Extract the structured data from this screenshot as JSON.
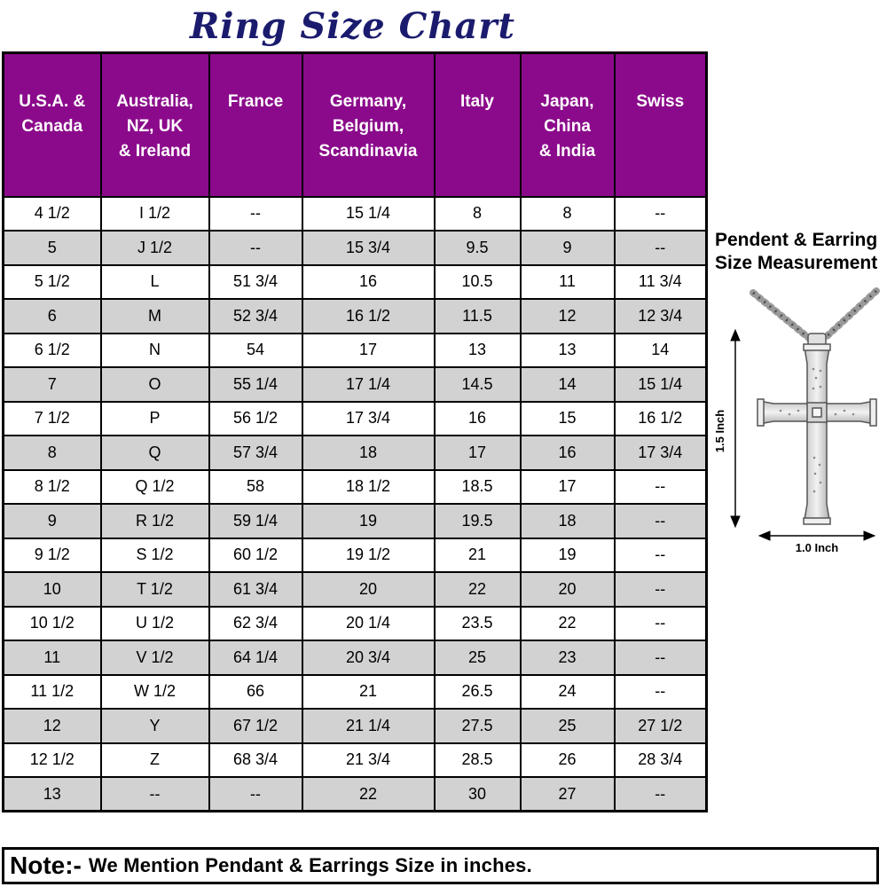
{
  "title": "Ring Size Chart",
  "chart_data": {
    "type": "table",
    "title": "Ring Size Chart",
    "columns": [
      "U.S.A. &\nCanada",
      "Australia,\nNZ, UK\n& Ireland",
      "France",
      "Germany,\nBelgium,\nScandinavia",
      "Italy",
      "Japan,\nChina\n& India",
      "Swiss"
    ],
    "rows": [
      [
        "4 1/2",
        "I 1/2",
        "--",
        "15 1/4",
        "8",
        "8",
        "--"
      ],
      [
        "5",
        "J 1/2",
        "--",
        "15 3/4",
        "9.5",
        "9",
        "--"
      ],
      [
        "5 1/2",
        "L",
        "51 3/4",
        "16",
        "10.5",
        "11",
        "11 3/4"
      ],
      [
        "6",
        "M",
        "52 3/4",
        "16 1/2",
        "11.5",
        "12",
        "12 3/4"
      ],
      [
        "6 1/2",
        "N",
        "54",
        "17",
        "13",
        "13",
        "14"
      ],
      [
        "7",
        "O",
        "55 1/4",
        "17 1/4",
        "14.5",
        "14",
        "15 1/4"
      ],
      [
        "7 1/2",
        "P",
        "56 1/2",
        "17 3/4",
        "16",
        "15",
        "16 1/2"
      ],
      [
        "8",
        "Q",
        "57 3/4",
        "18",
        "17",
        "16",
        "17 3/4"
      ],
      [
        "8 1/2",
        "Q 1/2",
        "58",
        "18 1/2",
        "18.5",
        "17",
        "--"
      ],
      [
        "9",
        "R 1/2",
        "59 1/4",
        "19",
        "19.5",
        "18",
        "--"
      ],
      [
        "9 1/2",
        "S 1/2",
        "60 1/2",
        "19 1/2",
        "21",
        "19",
        "--"
      ],
      [
        "10",
        "T 1/2",
        "61 3/4",
        "20",
        "22",
        "20",
        "--"
      ],
      [
        "10 1/2",
        "U 1/2",
        "62 3/4",
        "20 1/4",
        "23.5",
        "22",
        "--"
      ],
      [
        "11",
        "V 1/2",
        "64 1/4",
        "20 3/4",
        "25",
        "23",
        "--"
      ],
      [
        "11 1/2",
        "W 1/2",
        "66",
        "21",
        "26.5",
        "24",
        "--"
      ],
      [
        "12",
        "Y",
        "67 1/2",
        "21 1/4",
        "27.5",
        "25",
        "27 1/2"
      ],
      [
        "12 1/2",
        "Z",
        "68 3/4",
        "21 3/4",
        "28.5",
        "26",
        "28 3/4"
      ],
      [
        "13",
        "--",
        "--",
        "22",
        "30",
        "27",
        "--"
      ]
    ]
  },
  "side_panel": {
    "heading_line1": "Pendent & Earring",
    "heading_line2": "Size Measurement",
    "vertical_label": "1.5 Inch",
    "horizontal_label": "1.0 Inch"
  },
  "note": {
    "prefix": "Note:-",
    "text": "We Mention Pendant & Earrings Size in inches."
  },
  "colors": {
    "header_bg": "#8B0A8B",
    "alt_row_bg": "#D2D2D2",
    "title_color": "#1B1B6E",
    "border": "#000000"
  }
}
